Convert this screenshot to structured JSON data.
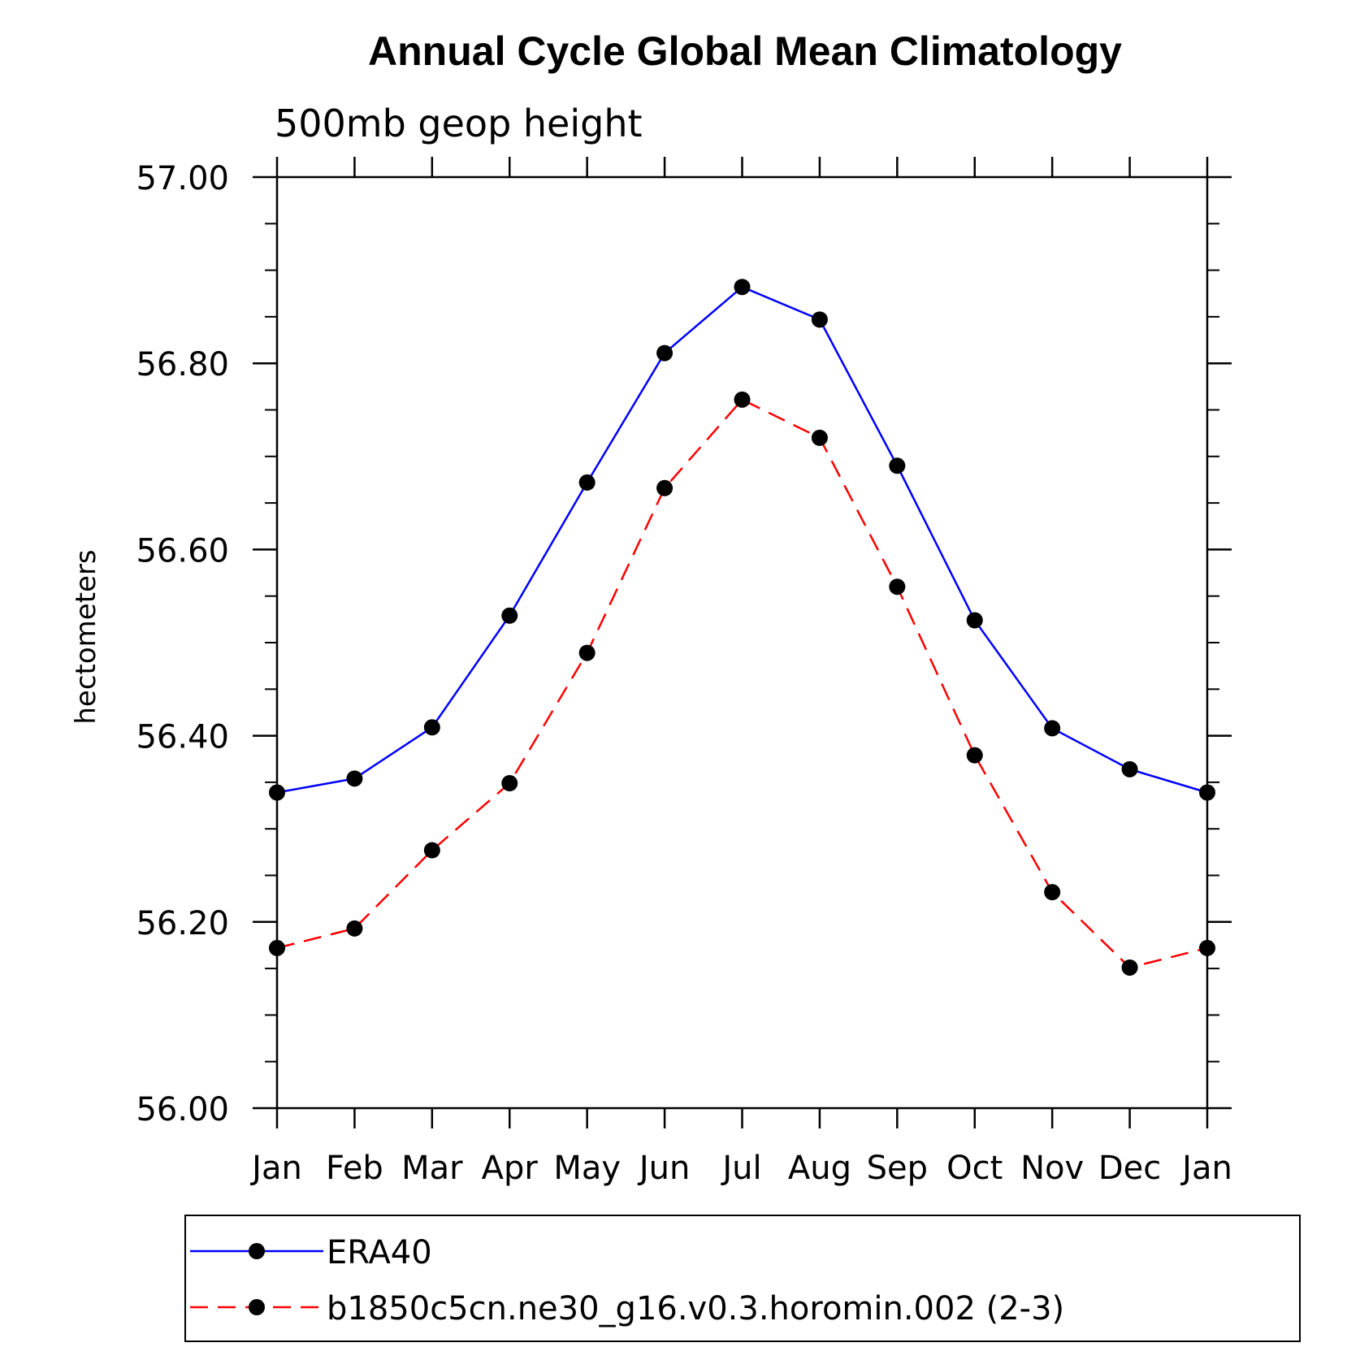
{
  "chart_data": {
    "type": "line",
    "title": "Annual Cycle Global Mean Climatology",
    "subtitle": "500mb geop height",
    "ylabel": "hectometers",
    "categories": [
      "Jan",
      "Feb",
      "Mar",
      "Apr",
      "May",
      "Jun",
      "Jul",
      "Aug",
      "Sep",
      "Oct",
      "Nov",
      "Dec",
      "Jan"
    ],
    "ylim": [
      56.0,
      57.0
    ],
    "yticks": [
      "56.00",
      "56.20",
      "56.40",
      "56.60",
      "56.80",
      "57.00"
    ],
    "grid": false,
    "legend_position": "bottom",
    "series": [
      {
        "name": "ERA40",
        "color": "#0000ff",
        "line_style": "solid",
        "marker": "circle",
        "values": [
          56.339,
          56.354,
          56.409,
          56.529,
          56.672,
          56.811,
          56.882,
          56.847,
          56.69,
          56.524,
          56.408,
          56.364,
          56.339
        ]
      },
      {
        "name": "b1850c5cn.ne30_g16.v0.3.horomin.002 (2-3)",
        "color": "#ff0000",
        "line_style": "dashed",
        "marker": "circle",
        "values": [
          56.172,
          56.193,
          56.277,
          56.349,
          56.489,
          56.666,
          56.761,
          56.72,
          56.56,
          56.379,
          56.232,
          56.151,
          56.172
        ]
      }
    ]
  }
}
